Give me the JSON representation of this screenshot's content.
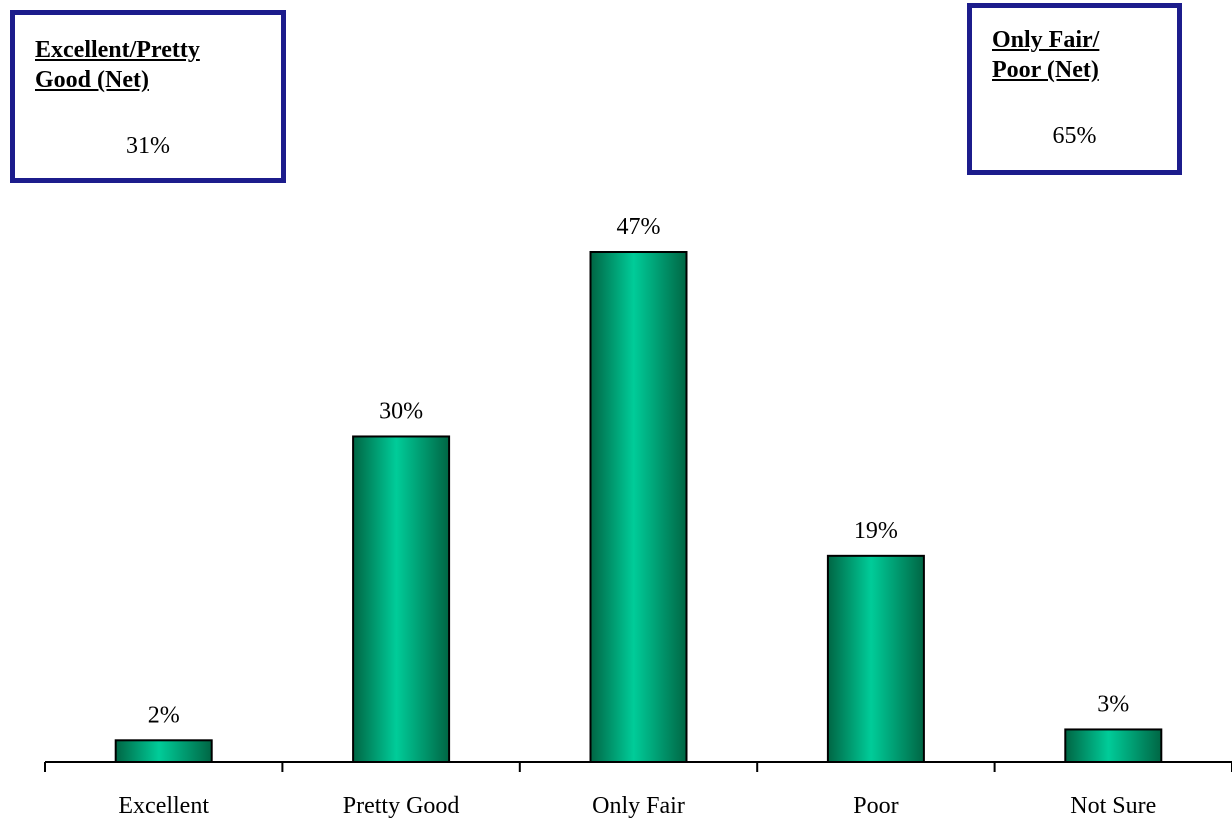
{
  "net_boxes": {
    "left": {
      "title_line1": "Excellent/Pretty",
      "title_line2": "Good (Net)",
      "value": "31%"
    },
    "right": {
      "title_line1": "Only Fair/",
      "title_line2": "Poor (Net)",
      "value": "65%"
    }
  },
  "colors": {
    "bar_light": "#00cc99",
    "bar_dark": "#006644",
    "box_border": "#1c1c8c"
  },
  "chart_data": {
    "type": "bar",
    "categories": [
      "Excellent",
      "Pretty Good",
      "Only Fair",
      "Poor",
      "Not Sure"
    ],
    "values": [
      2,
      30,
      47,
      19,
      3
    ],
    "value_labels": [
      "2%",
      "30%",
      "47%",
      "19%",
      "3%"
    ],
    "title": "",
    "xlabel": "",
    "ylabel": "",
    "ylim": [
      0,
      50
    ],
    "grid": false
  }
}
